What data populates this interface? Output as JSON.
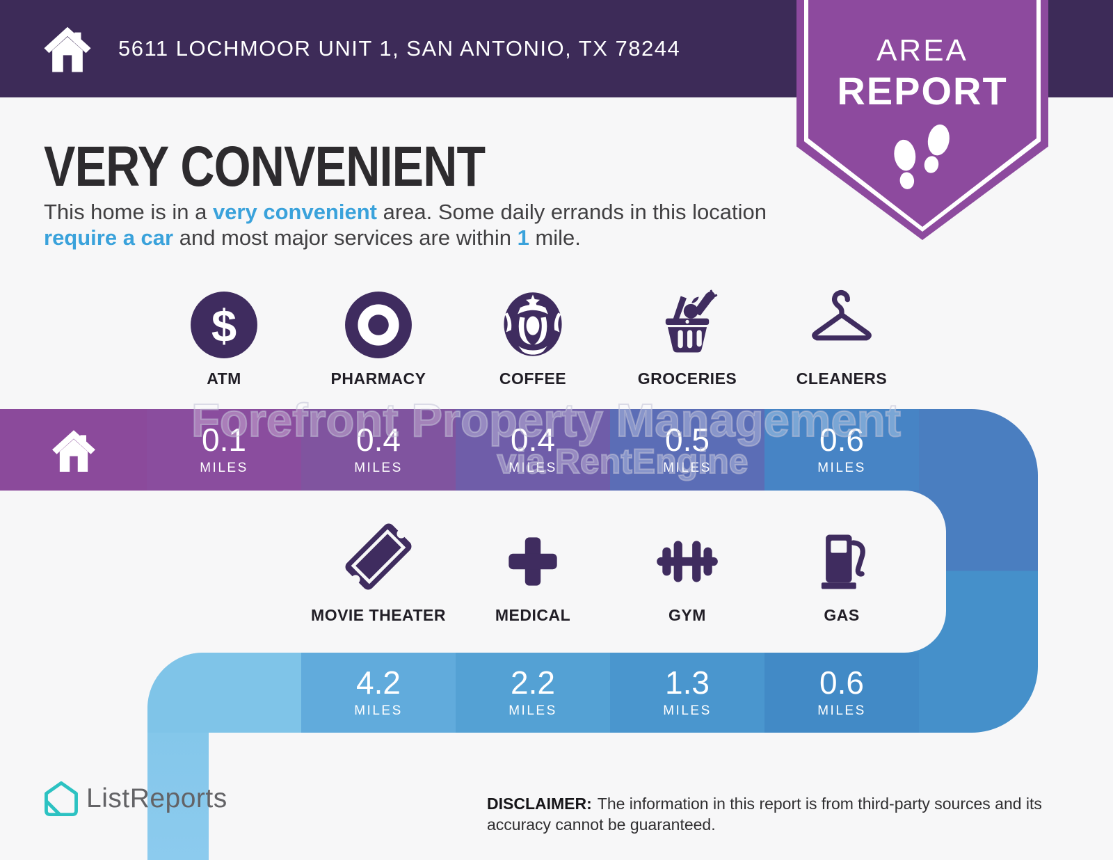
{
  "header": {
    "address": "5611 LOCHMOOR UNIT 1, SAN ANTONIO, TX 78244",
    "badge": {
      "line1": "AREA",
      "line2": "REPORT"
    }
  },
  "summary": {
    "title": "VERY CONVENIENT",
    "description_parts": [
      {
        "text": "This home is in a ",
        "highlight": false
      },
      {
        "text": "very convenient",
        "highlight": true
      },
      {
        "text": " area. Some daily errands in this location ",
        "highlight": false
      },
      {
        "text": "require a car",
        "highlight": true
      },
      {
        "text": " and most major services are within ",
        "highlight": false
      },
      {
        "text": "1",
        "highlight": true
      },
      {
        "text": " mile.",
        "highlight": false
      }
    ]
  },
  "route": {
    "row1": [
      {
        "icon": "atm-icon",
        "label": "ATM",
        "distance": "0.1",
        "unit": "MILES",
        "cell_color": "#8a4d9e"
      },
      {
        "icon": "pharmacy-icon",
        "label": "PHARMACY",
        "distance": "0.4",
        "unit": "MILES",
        "cell_color": "#80549f"
      },
      {
        "icon": "coffee-icon",
        "label": "COFFEE",
        "distance": "0.4",
        "unit": "MILES",
        "cell_color": "#6f5da9"
      },
      {
        "icon": "groceries-icon",
        "label": "GROCERIES",
        "distance": "0.5",
        "unit": "MILES",
        "cell_color": "#5b6db6"
      },
      {
        "icon": "cleaners-icon",
        "label": "CLEANERS",
        "distance": "0.6",
        "unit": "MILES",
        "cell_color": "#4784c5"
      }
    ],
    "row2": [
      {
        "icon": "movie-theater-icon",
        "label": "MOVIE THEATER",
        "distance": "4.2",
        "unit": "MILES",
        "cell_color": "#61abdc"
      },
      {
        "icon": "medical-icon",
        "label": "MEDICAL",
        "distance": "2.2",
        "unit": "MILES",
        "cell_color": "#54a1d4"
      },
      {
        "icon": "gym-icon",
        "label": "GYM",
        "distance": "1.3",
        "unit": "MILES",
        "cell_color": "#4a96ce"
      },
      {
        "icon": "gas-icon",
        "label": "GAS",
        "distance": "0.6",
        "unit": "MILES",
        "cell_color": "#428ac6"
      }
    ],
    "home_cell_color": "#8b4a9b",
    "turn_color": "#7fc4e8",
    "turn_color_bottom": "#8ccbee",
    "connector_top_color": "#4a7ec0",
    "connector_bottom_color": "#4590ca"
  },
  "watermark": {
    "line1": "Forefront Property Management",
    "line2": "via RentEngine"
  },
  "footer": {
    "brand": "ListReports",
    "disclaimer_label": "DISCLAIMER:",
    "disclaimer_text": "The information in this report is from third-party sources and its accuracy cannot be guaranteed."
  },
  "colors": {
    "page_bg": "#f7f7f8",
    "header_bg": "#3d2b58",
    "badge_purple": "#8d4a9e",
    "icon_purple": "#3f2c5f",
    "accent_blue": "#3aa2db",
    "brand_teal": "#2cc2c2"
  }
}
